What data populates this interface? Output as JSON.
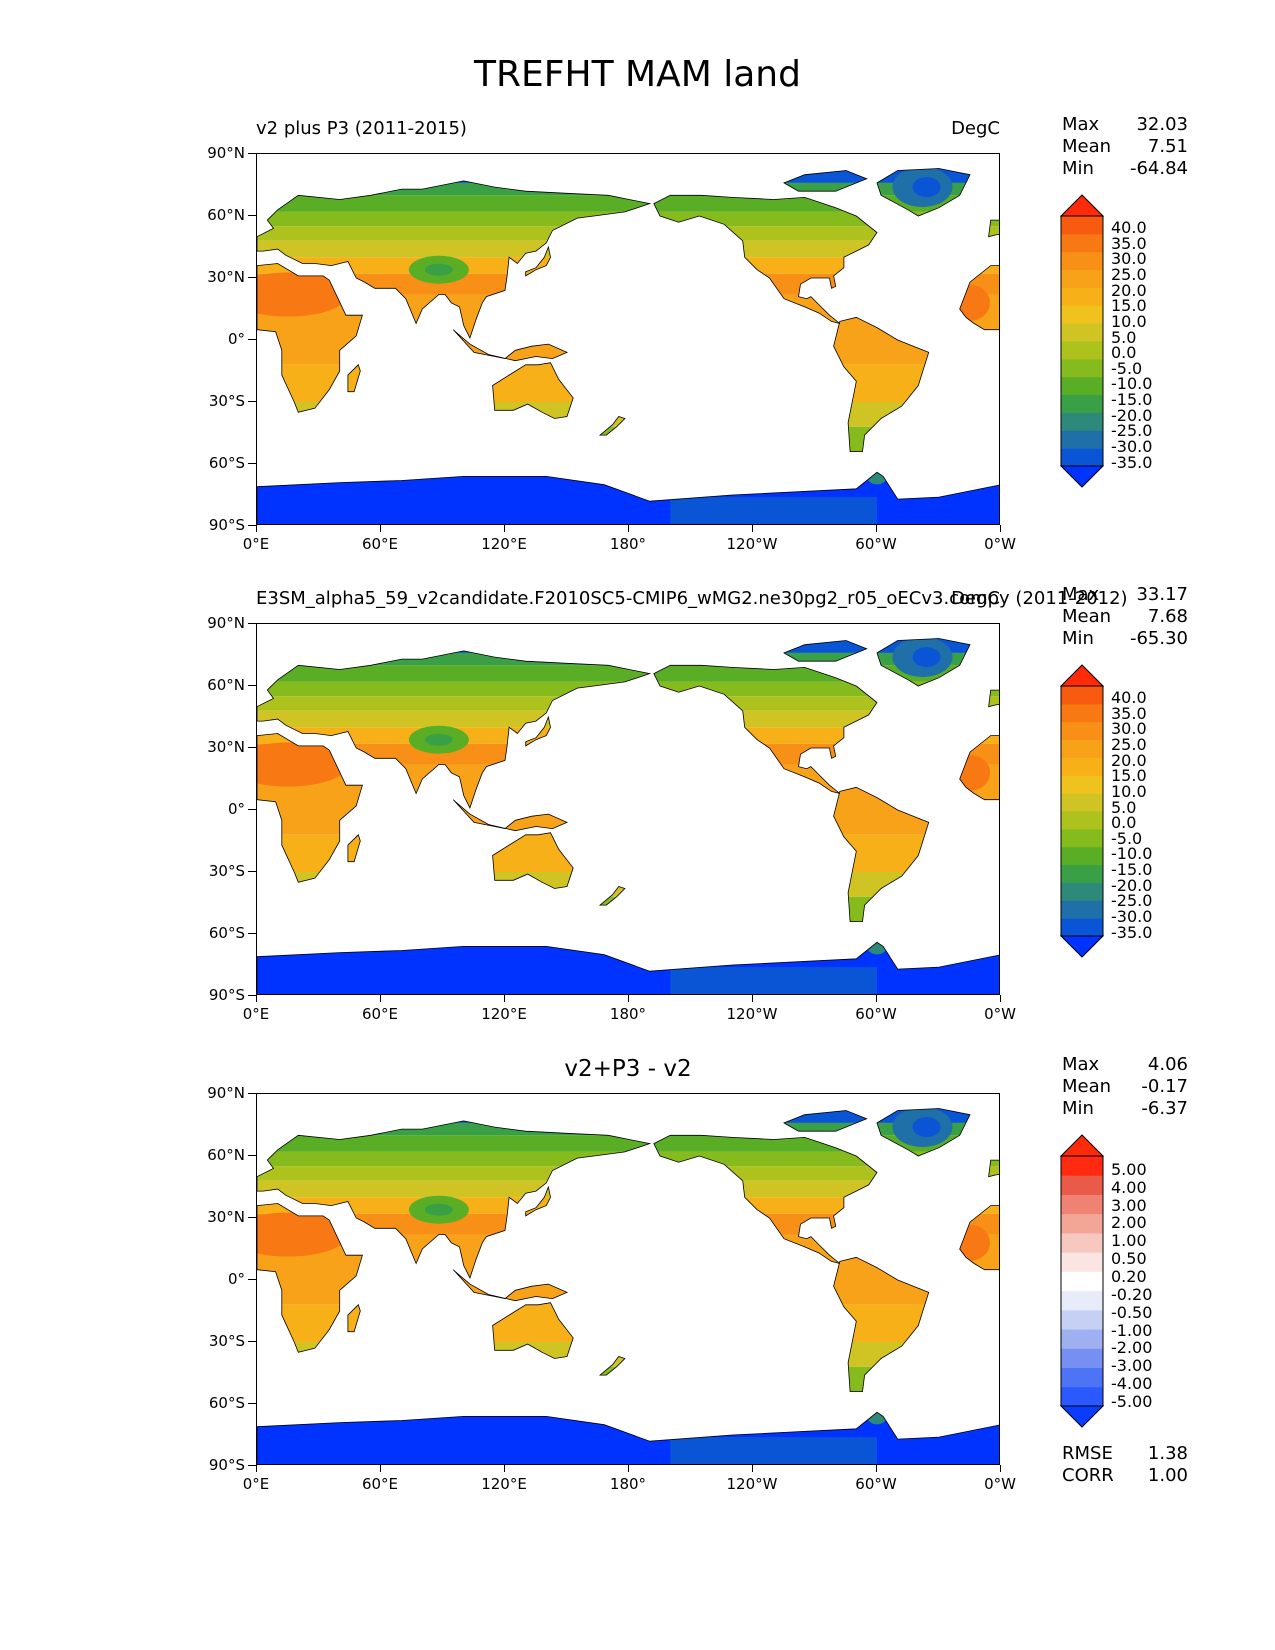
{
  "figure_title": "TREFHT MAM land",
  "chart_data": [
    {
      "type": "heatmap",
      "panel": "test",
      "title_left": "v2 plus P3 (2011-2015)",
      "units": "DegC",
      "stats": {
        "max_label": "Max",
        "max": "32.03",
        "mean_label": "Mean",
        "mean": "7.51",
        "min_label": "Min",
        "min": "-64.84"
      },
      "x_ticks": [
        "0°E",
        "60°E",
        "120°E",
        "180°",
        "120°W",
        "60°W",
        "0°W"
      ],
      "y_ticks": [
        "90°N",
        "60°N",
        "30°N",
        "0°",
        "30°S",
        "60°S",
        "90°S"
      ],
      "colorbar_levels": [
        "40.0",
        "35.0",
        "30.0",
        "25.0",
        "20.0",
        "15.0",
        "10.0",
        "5.0",
        "0.0",
        "-5.0",
        "-10.0",
        "-15.0",
        "-20.0",
        "-25.0",
        "-30.0",
        "-35.0"
      ],
      "xlim": [
        0,
        360
      ],
      "ylim": [
        -90,
        90
      ]
    },
    {
      "type": "heatmap",
      "panel": "reference",
      "title_left": "E3SM_alpha5_59_v2candidate.F2010SC5-CMIP6_wMG2.ne30pg2_r05_oECv3.compy (2011-2012)",
      "units": "DegC",
      "stats": {
        "max_label": "Max",
        "max": "33.17",
        "mean_label": "Mean",
        "mean": "7.68",
        "min_label": "Min",
        "min": "-65.30"
      },
      "x_ticks": [
        "0°E",
        "60°E",
        "120°E",
        "180°",
        "120°W",
        "60°W",
        "0°W"
      ],
      "y_ticks": [
        "90°N",
        "60°N",
        "30°N",
        "0°",
        "30°S",
        "60°S",
        "90°S"
      ],
      "colorbar_levels": [
        "40.0",
        "35.0",
        "30.0",
        "25.0",
        "20.0",
        "15.0",
        "10.0",
        "5.0",
        "0.0",
        "-5.0",
        "-10.0",
        "-15.0",
        "-20.0",
        "-25.0",
        "-30.0",
        "-35.0"
      ],
      "xlim": [
        0,
        360
      ],
      "ylim": [
        -90,
        90
      ]
    },
    {
      "type": "heatmap",
      "panel": "difference",
      "title_center": "v2+P3 - v2",
      "stats": {
        "max_label": "Max",
        "max": "4.06",
        "mean_label": "Mean",
        "mean": "-0.17",
        "min_label": "Min",
        "min": "-6.37"
      },
      "x_ticks": [
        "0°E",
        "60°E",
        "120°E",
        "180°",
        "120°W",
        "60°W",
        "0°W"
      ],
      "y_ticks": [
        "90°N",
        "60°N",
        "30°N",
        "0°",
        "30°S",
        "60°S",
        "90°S"
      ],
      "colorbar_levels": [
        "5.00",
        "4.00",
        "3.00",
        "2.00",
        "1.00",
        "0.50",
        "0.20",
        "-0.20",
        "-0.50",
        "-1.00",
        "-2.00",
        "-3.00",
        "-4.00",
        "-5.00"
      ],
      "rmse_label": "RMSE",
      "rmse": "1.38",
      "corr_label": "CORR",
      "corr": "1.00",
      "xlim": [
        0,
        360
      ],
      "ylim": [
        -90,
        90
      ]
    }
  ],
  "colors": {
    "temp_scale": [
      "#0033ff",
      "#0a55d6",
      "#1f6fa8",
      "#2d8a7a",
      "#3aa046",
      "#5aae26",
      "#86bb1e",
      "#aec21e",
      "#d0c424",
      "#f0c21e",
      "#f8b018",
      "#f8a21a",
      "#f89018",
      "#f87814",
      "#f85a10",
      "#ff2a08"
    ],
    "diff_scale": [
      "#0a3cff",
      "#2a5aff",
      "#4d74f5",
      "#7590f2",
      "#9fb0f0",
      "#c6d0f5",
      "#e8ecfa",
      "#ffffff",
      "#fbe5e2",
      "#f7c8c0",
      "#f3a696",
      "#ef8272",
      "#ea5a48",
      "#ff2a10",
      "#ff2a08"
    ]
  }
}
